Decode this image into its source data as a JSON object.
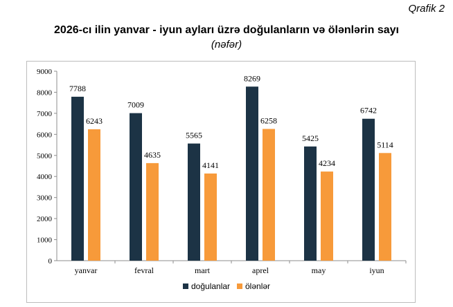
{
  "page": {
    "tag": "Qrafik 2",
    "title": "2026-cı ilin yanvar - iyun ayları üzrə doğulanların və ölənlərin sayı",
    "subtitle": "(nəfər)"
  },
  "chart_data": {
    "type": "bar",
    "categories": [
      "yanvar",
      "fevral",
      "mart",
      "aprel",
      "may",
      "iyun"
    ],
    "series": [
      {
        "name": "doğulanlar",
        "values": [
          7788,
          7009,
          5565,
          8269,
          5425,
          6742
        ],
        "color": "#1c3345"
      },
      {
        "name": "ölənlər",
        "values": [
          6243,
          4635,
          4141,
          6258,
          4234,
          5114
        ],
        "color": "#f79a3a"
      }
    ],
    "yticks": [
      "0",
      "1000",
      "2000",
      "3000",
      "4000",
      "5000",
      "6000",
      "7000",
      "8000",
      "9000"
    ],
    "ylim": [
      0,
      9000
    ],
    "grid": false,
    "legend": "bottom-center"
  }
}
